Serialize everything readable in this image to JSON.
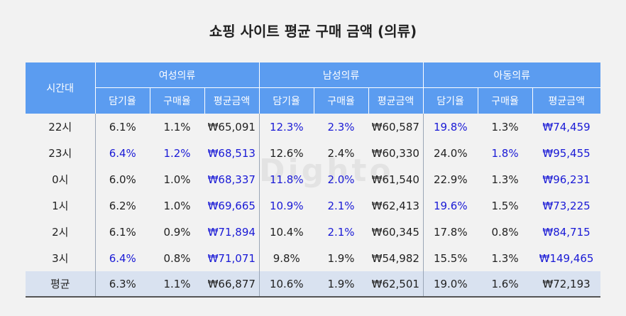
{
  "title": "쇼핑 사이트 평균 구매 금액 (의류)",
  "watermark": "Dighto",
  "header": {
    "time_label": "시간대",
    "groups": [
      "여성의류",
      "남성의류",
      "아동의류"
    ],
    "sub": [
      "담기율",
      "구매율",
      "평균금액"
    ]
  },
  "rows": [
    {
      "time": "22시",
      "cells": [
        "6.1%",
        "1.1%",
        "₩65,091",
        "12.3%",
        "2.3%",
        "₩60,587",
        "19.8%",
        "1.3%",
        "₩74,459"
      ],
      "highlight": [
        false,
        false,
        false,
        true,
        true,
        false,
        true,
        false,
        true
      ]
    },
    {
      "time": "23시",
      "cells": [
        "6.4%",
        "1.2%",
        "₩68,513",
        "12.6%",
        "2.4%",
        "₩60,330",
        "24.0%",
        "1.8%",
        "₩95,455"
      ],
      "highlight": [
        true,
        true,
        true,
        false,
        false,
        false,
        false,
        true,
        true
      ]
    },
    {
      "time": "0시",
      "cells": [
        "6.0%",
        "1.0%",
        "₩68,337",
        "11.8%",
        "2.0%",
        "₩61,540",
        "22.9%",
        "1.3%",
        "₩96,231"
      ],
      "highlight": [
        false,
        false,
        true,
        true,
        true,
        false,
        false,
        false,
        true
      ]
    },
    {
      "time": "1시",
      "cells": [
        "6.2%",
        "1.0%",
        "₩69,665",
        "10.9%",
        "2.1%",
        "₩62,413",
        "19.6%",
        "1.5%",
        "₩73,225"
      ],
      "highlight": [
        false,
        false,
        true,
        true,
        true,
        false,
        true,
        false,
        true
      ]
    },
    {
      "time": "2시",
      "cells": [
        "6.1%",
        "0.9%",
        "₩71,894",
        "10.4%",
        "2.1%",
        "₩60,345",
        "17.8%",
        "0.8%",
        "₩84,715"
      ],
      "highlight": [
        false,
        false,
        true,
        false,
        true,
        false,
        false,
        false,
        true
      ]
    },
    {
      "time": "3시",
      "cells": [
        "6.4%",
        "0.8%",
        "₩71,071",
        "9.8%",
        "1.9%",
        "₩54,982",
        "15.5%",
        "1.3%",
        "₩149,465"
      ],
      "highlight": [
        true,
        false,
        true,
        false,
        false,
        false,
        false,
        false,
        true
      ]
    }
  ],
  "average": {
    "time": "평균",
    "cells": [
      "6.3%",
      "1.1%",
      "₩66,877",
      "10.6%",
      "1.9%",
      "₩62,501",
      "19.0%",
      "1.6%",
      "₩72,193"
    ]
  },
  "colors": {
    "header": "#5b9cf0",
    "highlight": "#1a1ad6",
    "average_row": "#d9e2f0"
  }
}
